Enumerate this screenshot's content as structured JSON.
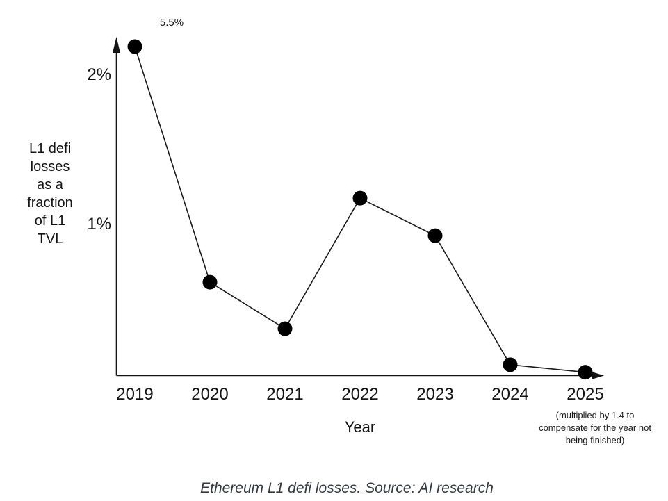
{
  "figure": {
    "caption": "Ethereum L1 defi losses. Source: AI research"
  },
  "chart_data": {
    "type": "line",
    "title": "",
    "xlabel": "Year",
    "ylabel": "L1 defi losses as a fraction of L1 TVL",
    "ylabel_lines": [
      "L1 defi",
      "losses",
      "as a",
      "fraction",
      "of L1",
      "TVL"
    ],
    "categories": [
      "2019",
      "2020",
      "2021",
      "2022",
      "2023",
      "2024",
      "2025"
    ],
    "series": [
      {
        "name": "L1 defi losses as a fraction of L1 TVL",
        "values_pct": [
          5.5,
          0.62,
          0.31,
          1.18,
          0.93,
          0.07,
          0.02
        ]
      }
    ],
    "yticks": [
      {
        "value": 2,
        "label": "2%"
      },
      {
        "value": 1,
        "label": "1%"
      }
    ],
    "ylim": [
      0,
      2.25
    ],
    "grid": false,
    "legend": false,
    "first_point_clipped_at_top": true,
    "annotations": {
      "peak_label": "5.5%",
      "last_point_note_lines": [
        "(multiplied by 1.4 to",
        "compensate for the year not",
        "being finished)"
      ]
    },
    "colors": {
      "line": "#1a1a1a",
      "point": "#000000",
      "axis": "#141414",
      "text": "#141414",
      "caption": "#343a40"
    }
  }
}
